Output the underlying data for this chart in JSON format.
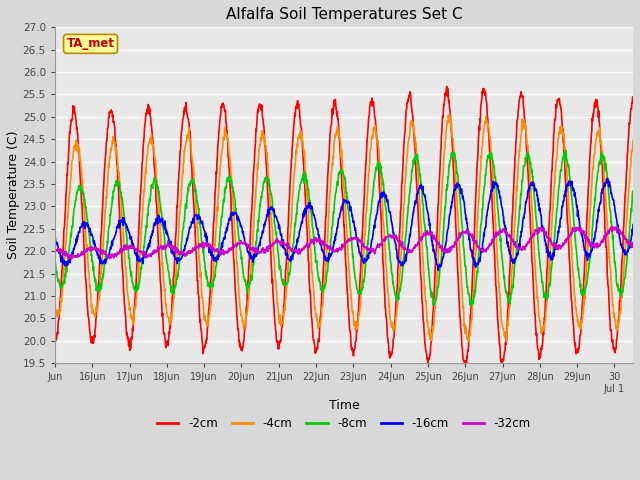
{
  "title": "Alfalfa Soil Temperatures Set C",
  "xlabel": "Time",
  "ylabel": "Soil Temperature (C)",
  "ylim": [
    19.5,
    27.0
  ],
  "yticks": [
    19.5,
    20.0,
    20.5,
    21.0,
    21.5,
    22.0,
    22.5,
    23.0,
    23.5,
    24.0,
    24.5,
    25.0,
    25.5,
    26.0,
    26.5,
    27.0
  ],
  "xtick_labels": [
    "Jun",
    "16Jun",
    "17Jun",
    "18Jun",
    "19Jun",
    "20Jun",
    "21Jun",
    "22Jun",
    "23Jun",
    "24Jun",
    "25Jun",
    "26Jun",
    "27Jun",
    "28Jun",
    "29Jun",
    "30\nJul 1"
  ],
  "line_colors": {
    "-2cm": "#FF0000",
    "-4cm": "#FF8C00",
    "-8cm": "#00CC00",
    "-16cm": "#0000FF",
    "-32cm": "#CC00CC"
  },
  "legend_label": "TA_met",
  "legend_box_color": "#FFFF99",
  "legend_text_color": "#CC0000",
  "background_color": "#D8D8D8",
  "plot_bg_color": "#E8E8E8",
  "grid_color": "#FFFFFF",
  "n_points": 1500,
  "total_days": 15.5,
  "amplitudes": {
    "-2cm": [
      2.55,
      2.6,
      2.65,
      2.65,
      2.7,
      2.75,
      2.7,
      2.75,
      2.8,
      2.85,
      3.0,
      3.1,
      3.0,
      2.9,
      2.8,
      2.75
    ],
    "-4cm": [
      1.9,
      1.95,
      2.0,
      2.05,
      2.1,
      2.15,
      2.1,
      2.15,
      2.2,
      2.25,
      2.4,
      2.5,
      2.4,
      2.3,
      2.2,
      2.15
    ],
    "-8cm": [
      1.1,
      1.15,
      1.2,
      1.25,
      1.2,
      1.25,
      1.2,
      1.3,
      1.4,
      1.5,
      1.65,
      1.7,
      1.65,
      1.6,
      1.55,
      1.55
    ],
    "-16cm": [
      0.45,
      0.45,
      0.45,
      0.48,
      0.5,
      0.52,
      0.55,
      0.6,
      0.7,
      0.8,
      0.9,
      0.92,
      0.88,
      0.84,
      0.82,
      0.8
    ],
    "-32cm": [
      0.08,
      0.09,
      0.09,
      0.1,
      0.1,
      0.1,
      0.11,
      0.12,
      0.14,
      0.17,
      0.2,
      0.22,
      0.22,
      0.21,
      0.2,
      0.2
    ]
  },
  "phase_shifts_days": {
    "-2cm": 0.0,
    "-4cm": 0.07,
    "-8cm": 0.17,
    "-16cm": 0.3,
    "-32cm": 0.5
  },
  "base_temps": {
    "-2cm": 22.55,
    "-4cm": 22.5,
    "-8cm": 22.3,
    "-16cm": 22.15,
    "-32cm": 21.95
  },
  "trend_slopes": {
    "-2cm": 0.0,
    "-4cm": 0.0,
    "-8cm": 0.02,
    "-16cm": 0.04,
    "-32cm": 0.025
  }
}
